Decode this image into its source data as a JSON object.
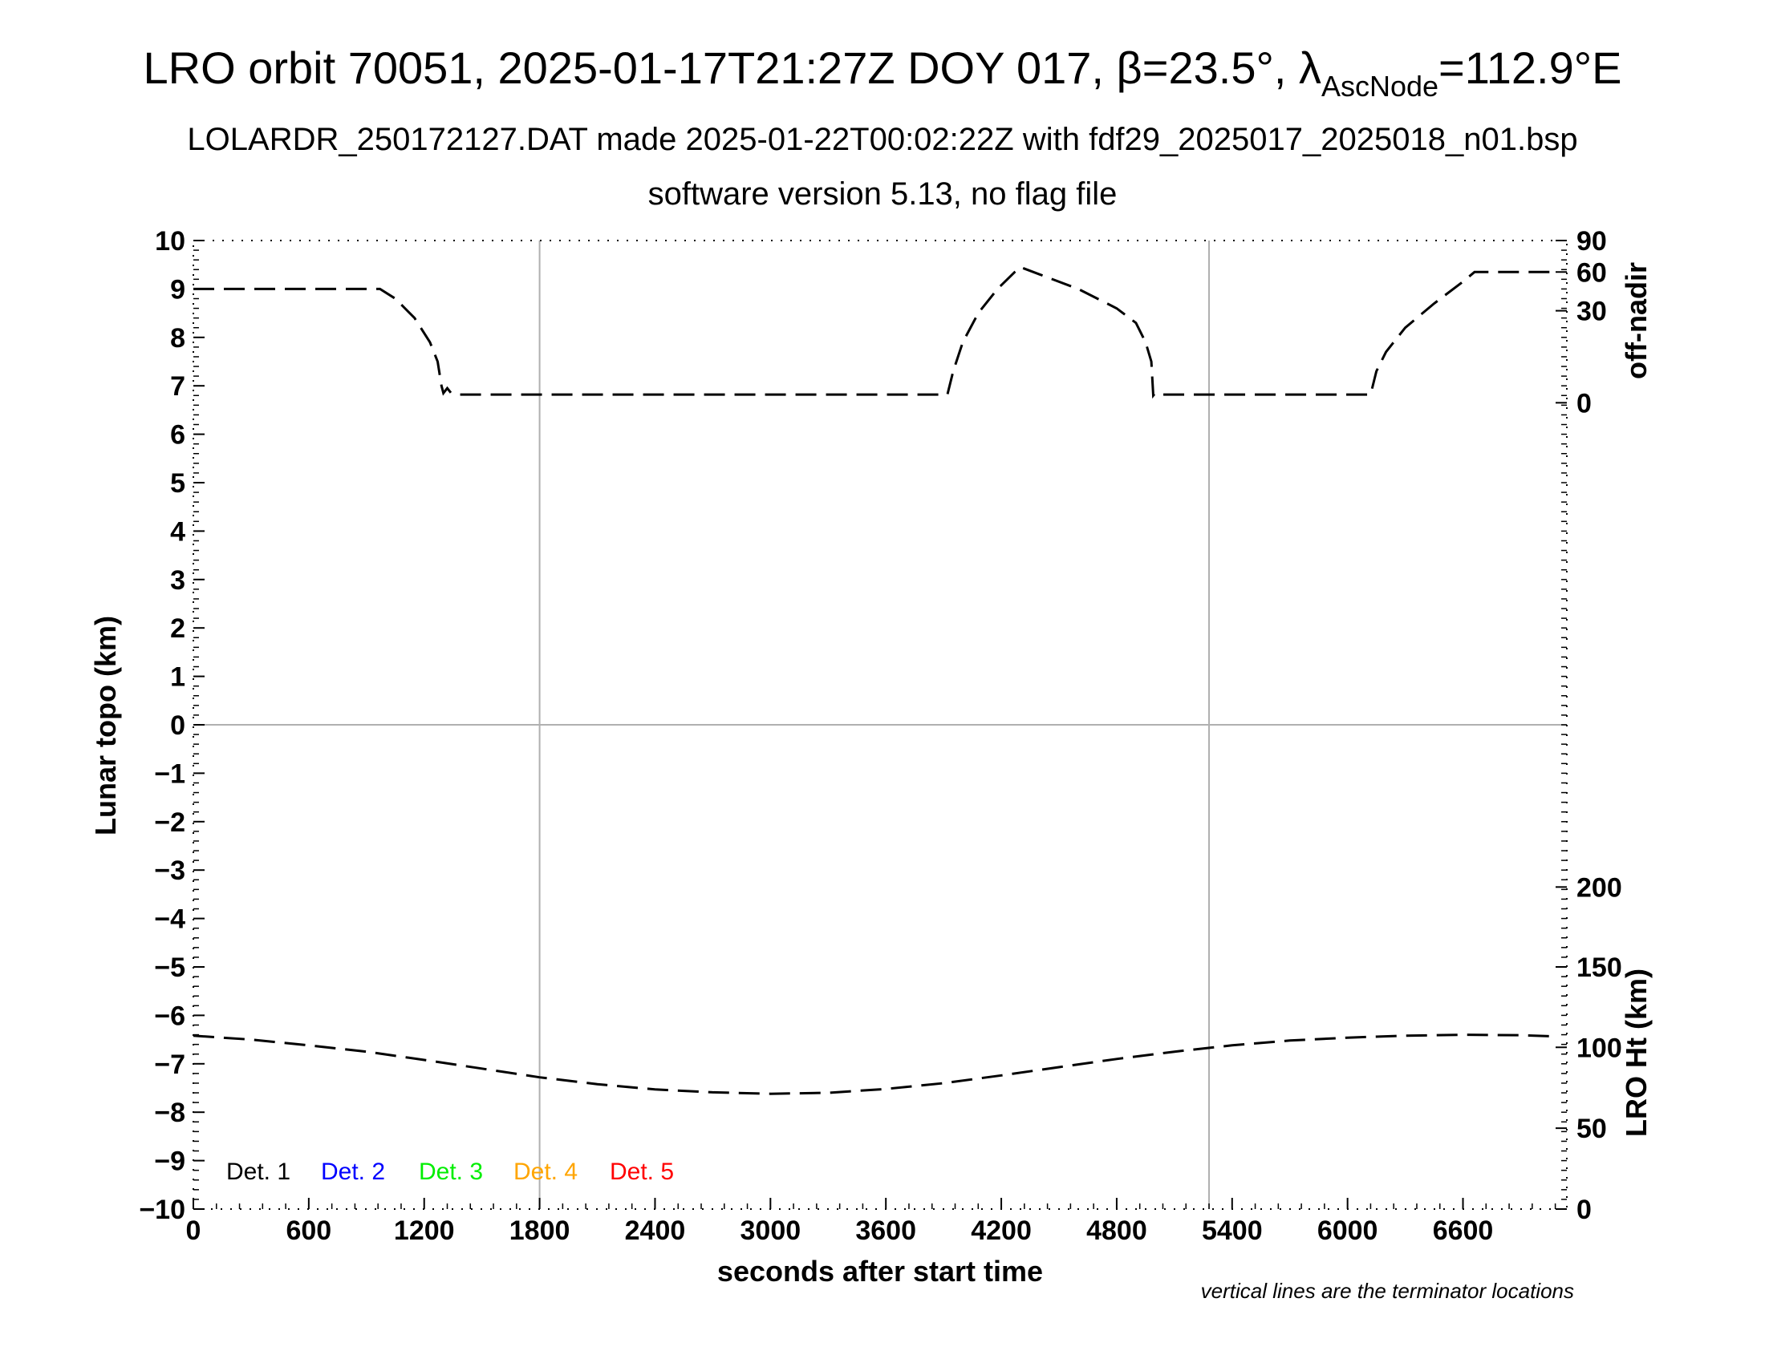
{
  "header": {
    "title_main": "LRO orbit 70051, 2025-01-17T21:27Z DOY 017, β=23.5°, λ",
    "title_sub": "AscNode",
    "title_tail": "=112.9°E",
    "subtitle_1": "LOLARDR_250172127.DAT made 2025-01-22T00:02:22Z with fdf29_2025017_2025018_n01.bsp",
    "subtitle_2": "software version 5.13, no flag file"
  },
  "note": "vertical lines are the terminator locations",
  "chart_data": {
    "type": "line",
    "xlabel": "seconds after start time",
    "ylabel": "Lunar topo (km)",
    "xlim": [
      0,
      7140
    ],
    "ylim": [
      -10,
      10
    ],
    "x_ticks": [
      0,
      600,
      1200,
      1800,
      2400,
      3000,
      3600,
      4200,
      4800,
      5400,
      6000,
      6600
    ],
    "y_ticks": [
      10,
      9,
      8,
      7,
      6,
      5,
      4,
      3,
      2,
      1,
      0,
      -1,
      -2,
      -3,
      -4,
      -5,
      -6,
      -7,
      -8,
      -9,
      -10
    ],
    "y_tick_labels": [
      "10",
      "9",
      "8",
      "7",
      "6",
      "5",
      "4",
      "3",
      "2",
      "1",
      "0",
      "−1",
      "−2",
      "−3",
      "−4",
      "−5",
      "−6",
      "−7",
      "−8",
      "−9",
      "−10"
    ],
    "terminator_lines_x": [
      1800,
      5280
    ],
    "zero_line_y": 0,
    "right_axis_offnadir": {
      "label": "off-nadir",
      "ticks": [
        {
          "label": "90",
          "topo_y": 10
        },
        {
          "label": "60",
          "topo_y": 9.35
        },
        {
          "label": "30",
          "topo_y": 8.55
        },
        {
          "label": "0",
          "topo_y": 6.65
        }
      ]
    },
    "right_axis_lroht": {
      "label": "LRO Ht (km)",
      "ticks": [
        {
          "label": "200",
          "topo_y": -3.35
        },
        {
          "label": "150",
          "topo_y": -5.0
        },
        {
          "label": "100",
          "topo_y": -6.66
        },
        {
          "label": "50",
          "topo_y": -8.33
        },
        {
          "label": "0",
          "topo_y": -10
        }
      ]
    },
    "legend": [
      {
        "label": "Det. 1",
        "color": "#000000"
      },
      {
        "label": "Det. 2",
        "color": "#0000ff"
      },
      {
        "label": "Det. 3",
        "color": "#00ee00"
      },
      {
        "label": "Det. 4",
        "color": "#ffa500"
      },
      {
        "label": "Det. 5",
        "color": "#ff0000"
      }
    ],
    "series": [
      {
        "axis": "off-nadir",
        "style": "dashed",
        "color": "#000000",
        "points": [
          [
            0,
            9.0
          ],
          [
            970,
            9.0
          ],
          [
            1050,
            8.8
          ],
          [
            1150,
            8.4
          ],
          [
            1230,
            7.9
          ],
          [
            1270,
            7.5
          ],
          [
            1290,
            7.0
          ],
          [
            1300,
            6.85
          ],
          [
            1320,
            6.95
          ],
          [
            1340,
            6.85
          ],
          [
            1380,
            6.82
          ],
          [
            3920,
            6.82
          ],
          [
            3950,
            7.3
          ],
          [
            4000,
            7.9
          ],
          [
            4080,
            8.5
          ],
          [
            4180,
            9.0
          ],
          [
            4270,
            9.35
          ],
          [
            4300,
            9.45
          ],
          [
            4400,
            9.3
          ],
          [
            4600,
            9.0
          ],
          [
            4800,
            8.6
          ],
          [
            4900,
            8.3
          ],
          [
            4950,
            7.9
          ],
          [
            4980,
            7.5
          ],
          [
            4990,
            6.8
          ],
          [
            5000,
            6.85
          ],
          [
            5030,
            6.82
          ],
          [
            6120,
            6.82
          ],
          [
            6150,
            7.3
          ],
          [
            6200,
            7.7
          ],
          [
            6300,
            8.2
          ],
          [
            6450,
            8.7
          ],
          [
            6600,
            9.15
          ],
          [
            6660,
            9.35
          ],
          [
            7050,
            9.35
          ]
        ]
      },
      {
        "axis": "LRO Ht (km)",
        "style": "dashed",
        "color": "#000000",
        "points": [
          [
            0,
            -6.42
          ],
          [
            300,
            -6.5
          ],
          [
            600,
            -6.62
          ],
          [
            900,
            -6.75
          ],
          [
            1200,
            -6.92
          ],
          [
            1500,
            -7.1
          ],
          [
            1800,
            -7.28
          ],
          [
            2100,
            -7.42
          ],
          [
            2400,
            -7.53
          ],
          [
            2700,
            -7.59
          ],
          [
            3000,
            -7.62
          ],
          [
            3300,
            -7.6
          ],
          [
            3600,
            -7.52
          ],
          [
            3900,
            -7.4
          ],
          [
            4200,
            -7.24
          ],
          [
            4500,
            -7.07
          ],
          [
            4800,
            -6.9
          ],
          [
            5100,
            -6.75
          ],
          [
            5400,
            -6.62
          ],
          [
            5700,
            -6.52
          ],
          [
            6000,
            -6.46
          ],
          [
            6300,
            -6.42
          ],
          [
            6600,
            -6.4
          ],
          [
            6900,
            -6.41
          ],
          [
            7050,
            -6.43
          ]
        ]
      }
    ]
  }
}
